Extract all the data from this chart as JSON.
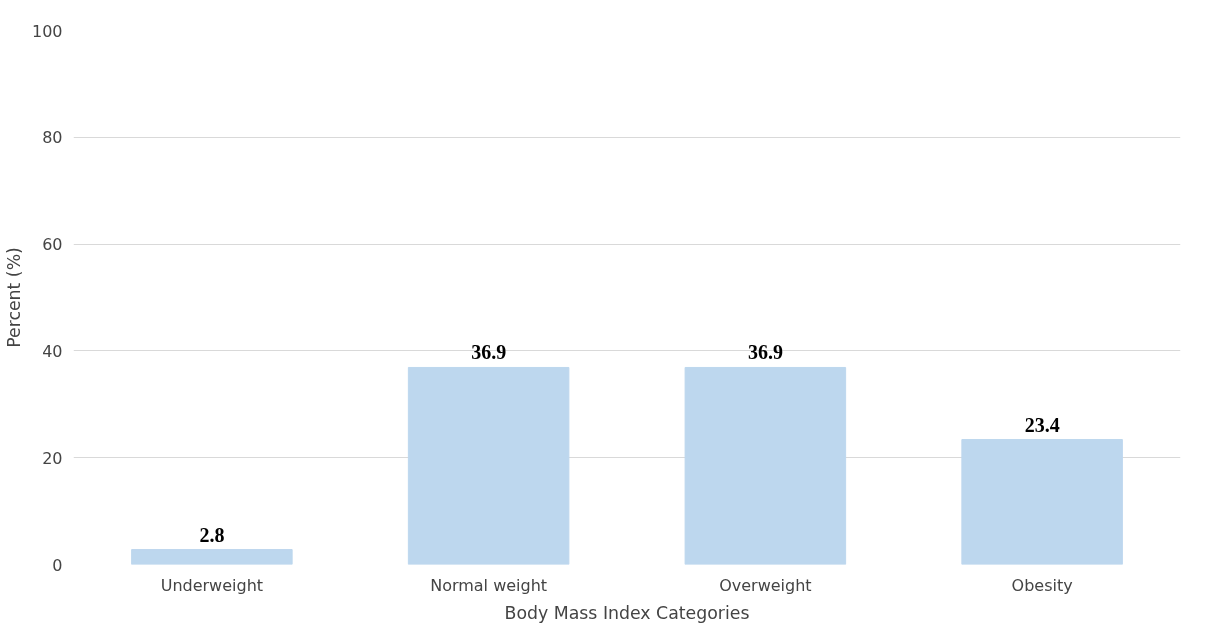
{
  "chart_data": {
    "type": "bar",
    "xlabel": "Body Mass Index Categories",
    "ylabel": "Percent (%)",
    "categories": [
      "Underweight",
      "Normal weight",
      "Overweight",
      "Obesity"
    ],
    "values": [
      2.8,
      36.9,
      36.9,
      23.4
    ],
    "color": "#bdd7ee",
    "ylim": [
      0,
      100
    ],
    "yticks": [
      0,
      20,
      40,
      60,
      80,
      100
    ],
    "grid": "y",
    "data_labels": true
  }
}
